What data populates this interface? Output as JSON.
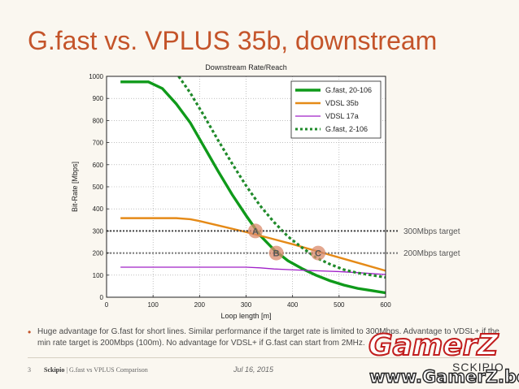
{
  "slide": {
    "title": "G.fast vs. VPLUS 35b, downstream",
    "bullet": "Huge advantage for G.fast for short lines. Similar performance if the target rate is limited to 300Mbps. Advantage to VDSL+ if the min rate target is 200Mbps (100m). No advantage for VDSL+ if G.fast can start from 2MHz.",
    "footer": {
      "page_number": "3",
      "brand": "Sckipio",
      "subtitle": "| G.fast vs VPLUS Comparison",
      "date": "Jul 16, 2015",
      "logo": "SCKIPIO"
    },
    "watermark": {
      "line1": "GamerZ",
      "line2": "www.GamerZ.be"
    }
  },
  "colors": {
    "title": "#c4542a",
    "gfast_20_106": "#0f9a1a",
    "vdsl_35b": "#e58a17",
    "vdsl_17a": "#a020c8",
    "gfast_2_106": "#1f8a2a",
    "target_line": "#555555",
    "marker": "#d98a6a"
  },
  "chart_data": {
    "type": "line",
    "title": "Downstream Rate/Reach",
    "xlabel": "Loop length [m]",
    "ylabel": "Bit-Rate [Mbps]",
    "xlim": [
      0,
      600
    ],
    "ylim": [
      0,
      1000
    ],
    "x_ticks": [
      "0",
      "100",
      "200",
      "300",
      "400",
      "500",
      "600"
    ],
    "y_ticks": [
      "0",
      "100",
      "200",
      "300",
      "400",
      "500",
      "600",
      "700",
      "800",
      "900",
      "1000"
    ],
    "grid": true,
    "legend_position": "top-right",
    "series": [
      {
        "name": "G.fast,  20-106",
        "color": "#0f9a1a",
        "style": "solid",
        "x": [
          30,
          90,
          120,
          150,
          180,
          210,
          240,
          270,
          300,
          330,
          360,
          390,
          420,
          450,
          480,
          510,
          540,
          570,
          600
        ],
        "y": [
          975,
          975,
          945,
          875,
          790,
          680,
          570,
          465,
          370,
          280,
          215,
          165,
          130,
          100,
          75,
          55,
          40,
          30,
          20
        ]
      },
      {
        "name": "VDSL 35b",
        "color": "#e58a17",
        "style": "solid",
        "x": [
          30,
          60,
          100,
          150,
          180,
          200,
          250,
          300,
          350,
          400,
          450,
          500,
          550,
          600
        ],
        "y": [
          358,
          358,
          358,
          358,
          353,
          345,
          320,
          295,
          268,
          240,
          210,
          180,
          150,
          120
        ]
      },
      {
        "name": "VDSL 17a",
        "color": "#a020c8",
        "style": "solid",
        "x": [
          30,
          100,
          200,
          300,
          330,
          360,
          400,
          450,
          500,
          550,
          600
        ],
        "y": [
          136,
          136,
          136,
          136,
          133,
          128,
          124,
          120,
          116,
          110,
          103
        ]
      },
      {
        "name": "G.fast,  2-106",
        "color": "#1f8a2a",
        "style": "dotted",
        "x": [
          155,
          180,
          210,
          240,
          270,
          300,
          330,
          360,
          390,
          420,
          450,
          480,
          510,
          540,
          570,
          600
        ],
        "y": [
          1000,
          925,
          820,
          710,
          605,
          505,
          415,
          340,
          275,
          225,
          180,
          150,
          125,
          110,
          100,
          90
        ]
      }
    ],
    "target_lines": [
      {
        "y": 300,
        "label": "300Mbps target"
      },
      {
        "y": 200,
        "label": "200Mbps target"
      }
    ],
    "markers": [
      {
        "label": "A",
        "x": 320,
        "y": 300
      },
      {
        "label": "B",
        "x": 365,
        "y": 200
      },
      {
        "label": "C",
        "x": 455,
        "y": 200
      }
    ]
  }
}
